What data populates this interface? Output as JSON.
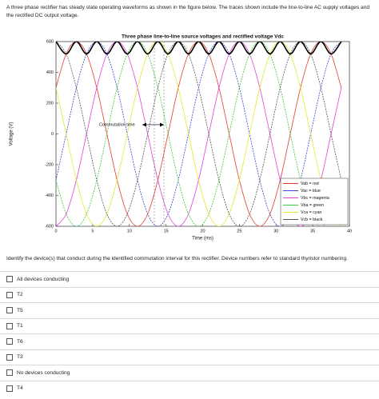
{
  "header": {
    "text": "A three phase rectifier has steady state operating waveforms as shown in the figure below. The traces shown include the line-to-line AC supply voltages and the rectified DC output voltage."
  },
  "chart_data": {
    "type": "line",
    "title": "Three phase line-to-line source voltages and rectified voltage Vdc",
    "xlabel": "Time (ms)",
    "ylabel": "Voltage (V)",
    "annotation": "Commutation time",
    "xlim": [
      0,
      40
    ],
    "ylim": [
      -600,
      600
    ],
    "xticks": [
      0,
      5,
      10,
      15,
      20,
      25,
      30,
      35,
      40
    ],
    "yticks": [
      -600,
      -400,
      -200,
      0,
      200,
      400,
      600
    ],
    "grid": false,
    "legend": "lower right",
    "x": [
      0,
      1.39,
      2.78,
      4.17,
      5.56,
      6.94,
      8.33,
      9.72,
      11.11,
      12.5,
      13.89,
      15.28,
      16.67,
      18.06,
      19.44,
      20.83,
      22.22,
      23.61,
      25,
      26.39,
      27.78,
      29.17,
      30.56,
      31.94,
      33.33,
      34.72,
      36.11,
      37.5,
      38.89
    ],
    "series": [
      {
        "name": "Vab = red",
        "color": "#e8392f",
        "values": [
          300,
          520,
          600,
          520,
          300,
          0,
          -300,
          -520,
          -600,
          -520,
          -300,
          0,
          300,
          520,
          600,
          520,
          300,
          0,
          -300,
          -520,
          -600,
          -520,
          -300,
          0,
          300,
          520,
          600,
          520,
          300
        ]
      },
      {
        "name": "Vac = blue",
        "color": "#3346d6",
        "values": [
          -300,
          0,
          300,
          520,
          600,
          520,
          300,
          0,
          -300,
          -520,
          -600,
          -520,
          -300,
          0,
          300,
          520,
          600,
          520,
          300,
          0,
          -300,
          -520,
          -600,
          -520,
          -300,
          0,
          300,
          520,
          600
        ]
      },
      {
        "name": "Vbc = magenta",
        "color": "#e040d8",
        "values": [
          -600,
          -520,
          -300,
          0,
          300,
          520,
          600,
          520,
          300,
          0,
          -300,
          -520,
          -600,
          -520,
          -300,
          0,
          300,
          520,
          600,
          520,
          300,
          0,
          -300,
          -520,
          -600,
          -520,
          -300,
          0,
          300
        ]
      },
      {
        "name": "Vba = green",
        "color": "#3cc83c",
        "values": [
          -300,
          -520,
          -600,
          -520,
          -300,
          0,
          300,
          520,
          600,
          520,
          300,
          0,
          -300,
          -520,
          -600,
          -520,
          -300,
          0,
          300,
          520,
          600,
          520,
          300,
          0,
          -300,
          -520,
          -600,
          -520,
          -300
        ]
      },
      {
        "name": "Vca = cyan",
        "color": "#e6e62a",
        "values": [
          300,
          0,
          -300,
          -520,
          -600,
          -520,
          -300,
          0,
          300,
          520,
          600,
          520,
          300,
          0,
          -300,
          -520,
          -600,
          -520,
          -300,
          0,
          300,
          520,
          600,
          520,
          300,
          0,
          -300,
          -520,
          -600
        ]
      },
      {
        "name": "Vcb = black",
        "color": "#555555",
        "values": [
          600,
          520,
          300,
          0,
          -300,
          -520,
          -600,
          -520,
          -300,
          0,
          300,
          520,
          600,
          520,
          300,
          0,
          -300,
          -520,
          -600,
          -520,
          -300,
          0,
          300,
          520,
          600,
          520,
          300,
          0,
          -300
        ]
      },
      {
        "color": "#000000",
        "values": [
          600,
          520,
          600,
          520,
          600,
          520,
          600,
          520,
          600,
          520,
          600,
          520,
          600,
          520,
          600,
          520,
          600,
          520,
          600,
          520,
          600,
          520,
          600,
          520,
          600,
          520,
          600,
          520,
          600
        ]
      }
    ]
  },
  "question": "Identify the device(s) that conduct during the identified commutation interval for this rectifier. Device numbers refer to standard thyristor numbering.",
  "options": [
    "All devices conducting",
    "T2",
    "T5",
    "T1",
    "T6",
    "T3",
    "No devices conducting",
    "T4"
  ]
}
